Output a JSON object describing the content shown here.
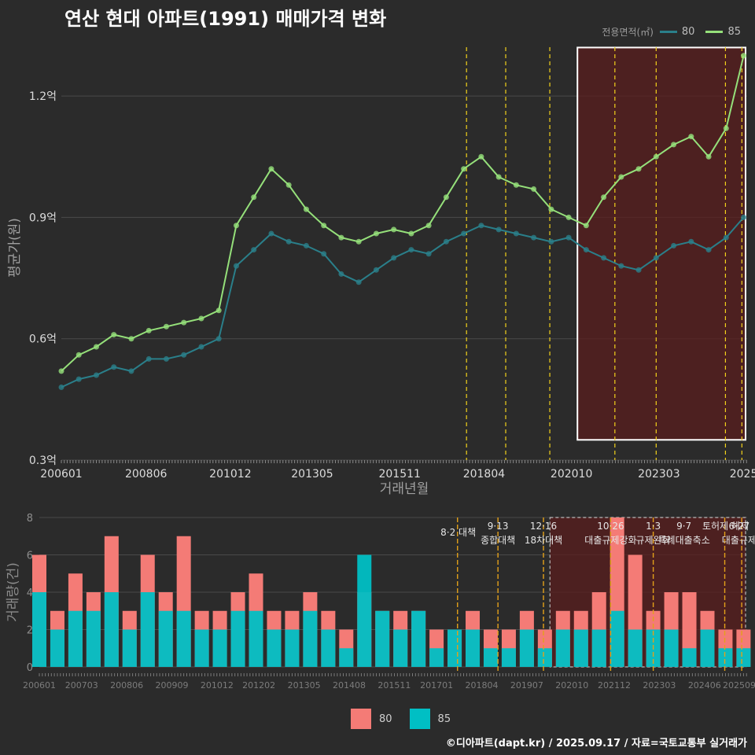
{
  "title": "연산 현대 아파트(1991) 매매가격 변화",
  "credit": "©디아파트(dapt.kr) / 2025.09.17 / 자료=국토교통부 실거래가",
  "colors": {
    "background": "#2b2b2b",
    "grid": "#4a4a4a",
    "series_80_line": "#2a7f8a",
    "series_85_line": "#95e07a",
    "bar_80": "#f47b76",
    "bar_85": "#00bfc4",
    "policy_line": "#f3d21b",
    "highlight_fill": "#5a1e1e",
    "highlight_border": "#ffffff"
  },
  "legend": {
    "title": "전용면적(㎡)",
    "items": [
      {
        "label": "80",
        "color": "#2a7f8a"
      },
      {
        "label": "85",
        "color": "#95e07a"
      }
    ]
  },
  "bar_legend": {
    "items": [
      {
        "label": "80",
        "color": "#f47b76"
      },
      {
        "label": "85",
        "color": "#00bfc4"
      }
    ]
  },
  "chart_data": [
    {
      "type": "line",
      "title": "연산 현대 아파트(1991) 매매가격 변화",
      "xlabel": "거래년월",
      "ylabel": "평균가(원)",
      "x_range": [
        2006.0,
        2025.6
      ],
      "ylim": [
        0.3,
        1.35
      ],
      "y_ticks": [
        0.3,
        0.6,
        0.9,
        1.2
      ],
      "y_tick_labels": [
        "0.3억",
        "0.6억",
        "0.9억",
        "1.2억"
      ],
      "x_ticks": [
        2006.0,
        2008.42,
        2010.83,
        2013.17,
        2015.67,
        2018.08,
        2020.58,
        2023.08,
        2025.5
      ],
      "x_tick_labels": [
        "200601",
        "200806",
        "201012",
        "201305",
        "201511",
        "201804",
        "202010",
        "202303",
        "2025"
      ],
      "policy_dates": [
        2017.58,
        2018.7,
        2019.96,
        2021.82,
        2023.0,
        2024.98,
        2025.45
      ],
      "highlight_range": {
        "x": [
          2020.75,
          2025.7
        ],
        "y": [
          0.35,
          1.32
        ]
      },
      "series": [
        {
          "name": "80",
          "x": [
            2006.0,
            2006.5,
            2007.0,
            2007.5,
            2008.0,
            2008.5,
            2009.0,
            2009.5,
            2010.0,
            2010.5,
            2011.0,
            2011.5,
            2012.0,
            2012.5,
            2013.0,
            2013.5,
            2014.0,
            2014.5,
            2015.0,
            2015.5,
            2016.0,
            2016.5,
            2017.0,
            2017.5,
            2018.0,
            2018.5,
            2019.0,
            2019.5,
            2020.0,
            2020.5,
            2021.0,
            2021.5,
            2022.0,
            2022.5,
            2023.0,
            2023.5,
            2024.0,
            2024.5,
            2025.0,
            2025.5
          ],
          "values": [
            0.48,
            0.5,
            0.51,
            0.53,
            0.52,
            0.55,
            0.55,
            0.56,
            0.58,
            0.6,
            0.78,
            0.82,
            0.86,
            0.84,
            0.83,
            0.81,
            0.76,
            0.74,
            0.77,
            0.8,
            0.82,
            0.81,
            0.84,
            0.86,
            0.88,
            0.87,
            0.86,
            0.85,
            0.84,
            0.85,
            0.82,
            0.8,
            0.78,
            0.77,
            0.8,
            0.83,
            0.84,
            0.82,
            0.85,
            0.9
          ]
        },
        {
          "name": "85",
          "x": [
            2006.0,
            2006.5,
            2007.0,
            2007.5,
            2008.0,
            2008.5,
            2009.0,
            2009.5,
            2010.0,
            2010.5,
            2011.0,
            2011.5,
            2012.0,
            2012.5,
            2013.0,
            2013.5,
            2014.0,
            2014.5,
            2015.0,
            2015.5,
            2016.0,
            2016.5,
            2017.0,
            2017.5,
            2018.0,
            2018.5,
            2019.0,
            2019.5,
            2020.0,
            2020.5,
            2021.0,
            2021.5,
            2022.0,
            2022.5,
            2023.0,
            2023.5,
            2024.0,
            2024.5,
            2025.0,
            2025.5
          ],
          "values": [
            0.52,
            0.56,
            0.58,
            0.61,
            0.6,
            0.62,
            0.63,
            0.64,
            0.65,
            0.67,
            0.88,
            0.95,
            1.02,
            0.98,
            0.92,
            0.88,
            0.85,
            0.84,
            0.86,
            0.87,
            0.86,
            0.88,
            0.95,
            1.02,
            1.05,
            1.0,
            0.98,
            0.97,
            0.92,
            0.9,
            0.88,
            0.95,
            1.0,
            1.02,
            1.05,
            1.08,
            1.1,
            1.05,
            1.12,
            1.3
          ]
        }
      ]
    },
    {
      "type": "bar",
      "title": "",
      "xlabel": "",
      "ylabel": "거래량(건)",
      "x_range": [
        2006.0,
        2025.6
      ],
      "ylim": [
        0,
        8
      ],
      "y_ticks": [
        0,
        2,
        4,
        6,
        8
      ],
      "x_ticks": [
        2006.0,
        2007.17,
        2008.42,
        2009.67,
        2010.92,
        2012.08,
        2013.33,
        2014.58,
        2015.83,
        2017.0,
        2018.25,
        2019.5,
        2020.75,
        2021.92,
        2023.17,
        2024.42,
        2025.6
      ],
      "x_tick_labels": [
        "200601",
        "200703",
        "200806",
        "200909",
        "201012",
        "201202",
        "201305",
        "201408",
        "201511",
        "201701",
        "201804",
        "201907",
        "202010",
        "202112",
        "202303",
        "202406",
        "202509"
      ],
      "policy_dates": [
        2017.58,
        2018.7,
        2019.96,
        2021.82,
        2023.0,
        2024.98,
        2025.45
      ],
      "annotations": [
        {
          "x": 2017.6,
          "lines": [
            "8·2 대책"
          ]
        },
        {
          "x": 2018.7,
          "lines": [
            "9·13",
            "종합대책"
          ]
        },
        {
          "x": 2019.96,
          "lines": [
            "12·16",
            "18차대책"
          ]
        },
        {
          "x": 2021.82,
          "lines": [
            "10·26",
            "대출규제강화"
          ]
        },
        {
          "x": 2023.0,
          "lines": [
            "1·3",
            "규제완화"
          ]
        },
        {
          "x": 2023.85,
          "lines": [
            "9·7",
            "특례대출축소"
          ]
        },
        {
          "x": 2025.0,
          "lines": [
            "토허제 해제"
          ]
        },
        {
          "x": 2025.38,
          "lines": [
            "6·27",
            "대출규제"
          ]
        }
      ],
      "highlight_range": {
        "x": [
          2020.75,
          2025.6
        ]
      },
      "series": [
        {
          "name": "80",
          "x": [
            2006.0,
            2006.5,
            2007.0,
            2007.5,
            2008.0,
            2008.5,
            2009.0,
            2009.5,
            2010.0,
            2010.5,
            2011.0,
            2011.5,
            2012.0,
            2012.5,
            2013.0,
            2013.5,
            2014.0,
            2014.5,
            2015.0,
            2015.5,
            2016.0,
            2016.5,
            2017.0,
            2017.5,
            2018.0,
            2018.5,
            2019.0,
            2019.5,
            2020.0,
            2020.5,
            2021.0,
            2021.5,
            2022.0,
            2022.5,
            2023.0,
            2023.5,
            2024.0,
            2024.5,
            2025.0,
            2025.5
          ],
          "values": [
            6,
            3,
            5,
            4,
            7,
            3,
            6,
            4,
            7,
            3,
            3,
            4,
            5,
            3,
            3,
            4,
            3,
            2,
            4,
            3,
            3,
            3,
            2,
            2,
            3,
            2,
            2,
            3,
            2,
            3,
            3,
            4,
            8,
            6,
            3,
            4,
            4,
            3,
            2,
            2
          ]
        },
        {
          "name": "85",
          "x": [
            2006.0,
            2006.5,
            2007.0,
            2007.5,
            2008.0,
            2008.5,
            2009.0,
            2009.5,
            2010.0,
            2010.5,
            2011.0,
            2011.5,
            2012.0,
            2012.5,
            2013.0,
            2013.5,
            2014.0,
            2014.5,
            2015.0,
            2015.5,
            2016.0,
            2016.5,
            2017.0,
            2017.5,
            2018.0,
            2018.5,
            2019.0,
            2019.5,
            2020.0,
            2020.5,
            2021.0,
            2021.5,
            2022.0,
            2022.5,
            2023.0,
            2023.5,
            2024.0,
            2024.5,
            2025.0,
            2025.5
          ],
          "values": [
            4,
            2,
            3,
            3,
            4,
            2,
            4,
            3,
            3,
            2,
            2,
            3,
            3,
            2,
            2,
            3,
            2,
            1,
            6,
            3,
            2,
            3,
            1,
            2,
            2,
            1,
            1,
            2,
            1,
            2,
            2,
            2,
            3,
            2,
            2,
            2,
            1,
            2,
            1,
            1
          ]
        }
      ]
    }
  ]
}
